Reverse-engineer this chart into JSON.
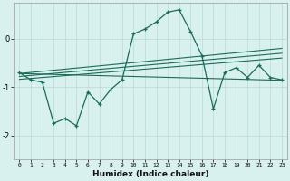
{
  "xlabel": "Humidex (Indice chaleur)",
  "x": [
    0,
    1,
    2,
    3,
    4,
    5,
    6,
    7,
    8,
    9,
    10,
    11,
    12,
    13,
    14,
    15,
    16,
    17,
    18,
    19,
    20,
    21,
    22,
    23
  ],
  "y_main": [
    -0.7,
    -0.85,
    -0.9,
    -1.75,
    -1.65,
    -1.8,
    -1.1,
    -1.35,
    -1.05,
    -0.85,
    0.1,
    0.2,
    0.35,
    0.55,
    0.6,
    0.15,
    -0.35,
    -1.45,
    -0.7,
    -0.6,
    -0.8,
    -0.55,
    -0.8,
    -0.85
  ],
  "line1_start": -0.72,
  "line1_end": -0.2,
  "line2_start": -0.78,
  "line2_end": -0.3,
  "line3_start": -0.84,
  "line3_end": -0.4,
  "line4_start": -0.72,
  "line4_end": -0.86,
  "line_color": "#1a6b5a",
  "bg_color": "#d8f0ee",
  "grid_color": "#b8dbd8",
  "ylim": [
    -2.5,
    0.75
  ],
  "xlim": [
    -0.5,
    23.5
  ]
}
